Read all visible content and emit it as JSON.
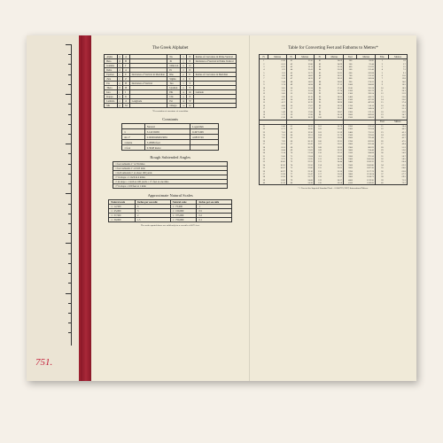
{
  "lot_number": "751.",
  "left_page": {
    "title": "The Greek Alphabet",
    "subtitle_left": "ORDINARY NOTATION",
    "subtitle_right": "PHONETIC NOTATION",
    "greek_rows": [
      [
        "Alpha",
        "α",
        "A",
        "",
        "Nu",
        "ν",
        "N",
        "Radius of Curvature in Prime Vertical"
      ],
      [
        "Beta",
        "β",
        "B",
        "",
        "Xi",
        "ξ",
        "Ξ",
        "Deviation of Vertical in Prime Vertical"
      ],
      [
        "Gamma",
        "γ",
        "Γ",
        "",
        "Omicron",
        "ο",
        "O",
        ""
      ],
      [
        "Delta",
        "δ",
        "Δ",
        "",
        "Pi",
        "π",
        "Π",
        ""
      ],
      [
        "Epsilon",
        "ε",
        "E",
        "Deviation of Vertical in Meridian",
        "Rho",
        "ρ",
        "P",
        "Radius of Curvature in Meridian"
      ],
      [
        "Zeta",
        "ζ",
        "Z",
        "",
        "Sigma",
        "σ",
        "Σ",
        ""
      ],
      [
        "Eta",
        "η",
        "H",
        "Deviation of Vertical",
        "Tau",
        "τ",
        "T",
        ""
      ],
      [
        "Theta",
        "θ",
        "Θ",
        "",
        "Upsilon",
        "υ",
        "Υ",
        ""
      ],
      [
        "Iota",
        "ι",
        "I",
        "",
        "Phi",
        "φ",
        "Φ",
        "Latitude"
      ],
      [
        "Kappa",
        "κ",
        "K",
        "",
        "Chi",
        "χ",
        "X",
        ""
      ],
      [
        "Lambda",
        "λ",
        "Λ",
        "Longitude",
        "Psi",
        "ψ",
        "Ψ",
        ""
      ],
      [
        "Mu",
        "μ",
        "M",
        "",
        "Omega",
        "ω",
        "Ω",
        ""
      ]
    ],
    "greek_footnote": "*For notation of curvature of a meridian",
    "constants": {
      "title": "Constants",
      "headers": [
        "",
        "Natural",
        "Logarithm"
      ],
      "rows": [
        [
          "π",
          "3.14159265",
          "0.4971499"
        ],
        [
          "sin 1\"",
          "0.00000484813681",
          "4.6855749"
        ],
        [
          "1 metre",
          "3.28084 feet",
          ""
        ],
        [
          "1 foot",
          "0.3048 metre",
          ""
        ]
      ]
    },
    "angles": {
      "title": "Rough Subtended Angles",
      "rows": [
        "1 foot subtends 1\" at 39 miles",
        "1 foot subtends 1' at 0.65 mile",
        "1 inch subtends 1' at about 100 yards",
        "1\" in slope = 1 inch in 4 miles",
        "1' in slope = 1 inch at 100 yards  = 1½ feet at one mile",
        "1° in slope = 100 feet at 1 mile"
      ]
    },
    "scales": {
      "title": "Approximate Natural Scales",
      "headers": [
        "Natural scale",
        "Inches per sea mile",
        "Natural scale",
        "Inches per sea mile"
      ],
      "rows": [
        [
          "1 : 12,500",
          "6",
          "1 : 75,000",
          "1"
        ],
        [
          "1 : 25,000",
          "3",
          "1 : 150,000",
          "0.5"
        ],
        [
          "1 : 37,500",
          "2",
          "1 : 375,000",
          "0.2"
        ],
        [
          "1 : 50,000",
          "1.5",
          "1 : 750,000",
          "0.1"
        ]
      ],
      "footnote": "The scales quoted above are valid only for a sea mile of 6075 feet."
    }
  },
  "right_page": {
    "title": "Table for Converting Feet and Fathoms to Metres*",
    "headers": [
      "Ft",
      "Metres",
      "Ft",
      "Metres",
      "Ft",
      "Metres",
      "Feet",
      "Metres",
      "Fms",
      "Metres"
    ],
    "section1_start": 1,
    "section1_rows": 40,
    "fathom_header": [
      "Feet",
      "Metres"
    ],
    "footnote": "* 1 Foot of the Imperial Standard Yard = 0.304797 (1927) International Metres."
  },
  "colors": {
    "page_bg": "#f0ead8",
    "book_spine": "#9a1f2e",
    "lot_red": "#c41e3a",
    "outer_bg": "#f5f0e8",
    "text": "#2a2a2a"
  }
}
